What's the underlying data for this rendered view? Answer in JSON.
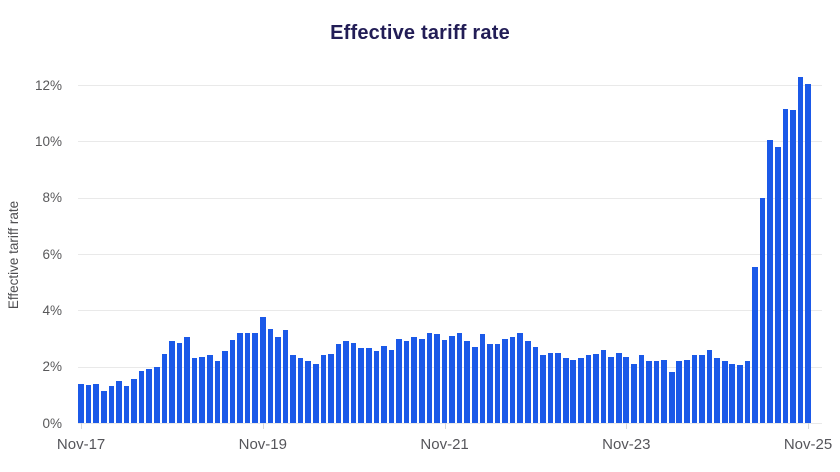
{
  "chart": {
    "title": "Effective tariff rate",
    "y_axis_title": "Effective tariff rate"
  },
  "chart_data": {
    "type": "bar",
    "title": "Effective tariff rate",
    "xlabel": "",
    "ylabel": "Effective tariff rate",
    "ylim": [
      0,
      12
    ],
    "y_unit": "%",
    "grid": "horizontal",
    "legend": "none",
    "bar_color": "#1b59e8",
    "frequency": "monthly",
    "x_range": [
      "Nov-17",
      "Nov-25"
    ],
    "x_ticks": [
      "Nov-17",
      "Nov-19",
      "Nov-21",
      "Nov-23",
      "Nov-25"
    ],
    "x_tick_indices": [
      0,
      24,
      48,
      72,
      96
    ],
    "y_ticks": [
      "0%",
      "2%",
      "4%",
      "6%",
      "8%",
      "10%",
      "12%"
    ],
    "y_tick_values": [
      0,
      2,
      4,
      6,
      8,
      10,
      12
    ],
    "values": [
      1.4,
      1.35,
      1.4,
      1.15,
      1.3,
      1.5,
      1.3,
      1.55,
      1.85,
      1.9,
      2.0,
      2.45,
      2.9,
      2.85,
      3.05,
      2.3,
      2.35,
      2.4,
      2.2,
      2.55,
      2.95,
      3.2,
      3.2,
      3.2,
      3.75,
      3.35,
      3.05,
      3.3,
      2.4,
      2.3,
      2.2,
      2.1,
      2.4,
      2.45,
      2.8,
      2.9,
      2.85,
      2.65,
      2.65,
      2.55,
      2.75,
      2.6,
      3.0,
      2.9,
      3.05,
      3.0,
      3.2,
      3.15,
      2.95,
      3.1,
      3.2,
      2.9,
      2.7,
      3.15,
      2.8,
      2.8,
      3.0,
      3.05,
      3.2,
      2.9,
      2.7,
      2.4,
      2.5,
      2.5,
      2.3,
      2.25,
      2.3,
      2.4,
      2.45,
      2.6,
      2.35,
      2.5,
      2.35,
      2.1,
      2.4,
      2.2,
      2.2,
      2.25,
      1.8,
      2.2,
      2.25,
      2.4,
      2.4,
      2.6,
      2.3,
      2.2,
      2.1,
      2.05,
      2.2,
      5.55,
      8.0,
      10.05,
      9.8,
      11.15,
      11.1,
      12.3,
      12.05
    ]
  }
}
